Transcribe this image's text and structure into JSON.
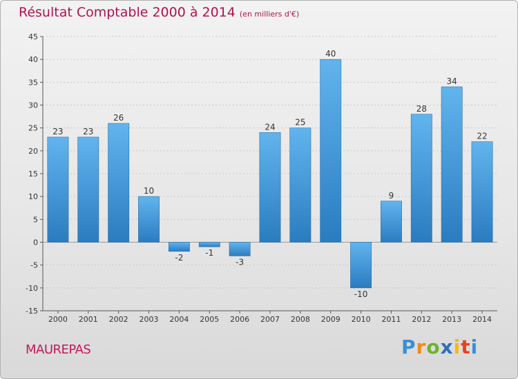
{
  "chart_data": {
    "type": "bar",
    "title": "Résultat Comptable 2000 à 2014",
    "unit_note": "(en milliers d'€)",
    "categories": [
      "2000",
      "2001",
      "2002",
      "2003",
      "2004",
      "2005",
      "2006",
      "2007",
      "2008",
      "2009",
      "2010",
      "2011",
      "2012",
      "2013",
      "2014"
    ],
    "values": [
      23,
      23,
      26,
      10,
      -2,
      -1,
      -3,
      24,
      25,
      40,
      -10,
      9,
      28,
      34,
      22
    ],
    "ylim": [
      -15,
      45
    ],
    "yticks": [
      -15,
      -10,
      -5,
      0,
      5,
      10,
      15,
      20,
      25,
      30,
      35,
      40,
      45
    ],
    "xlabel": "",
    "ylabel": "",
    "grid": true,
    "bar_color_light": "#62b4ee",
    "bar_color_dark": "#2a7cc0"
  },
  "commune": "MAUREPAS",
  "logo": {
    "letters": [
      "P",
      "r",
      "o",
      "x",
      "i",
      "t",
      "i"
    ],
    "colors": [
      "#3a8fd6",
      "#f08a1c",
      "#6bb42d",
      "#2f6fb8",
      "#f3b81c",
      "#e2441f",
      "#3a8fd6"
    ]
  }
}
